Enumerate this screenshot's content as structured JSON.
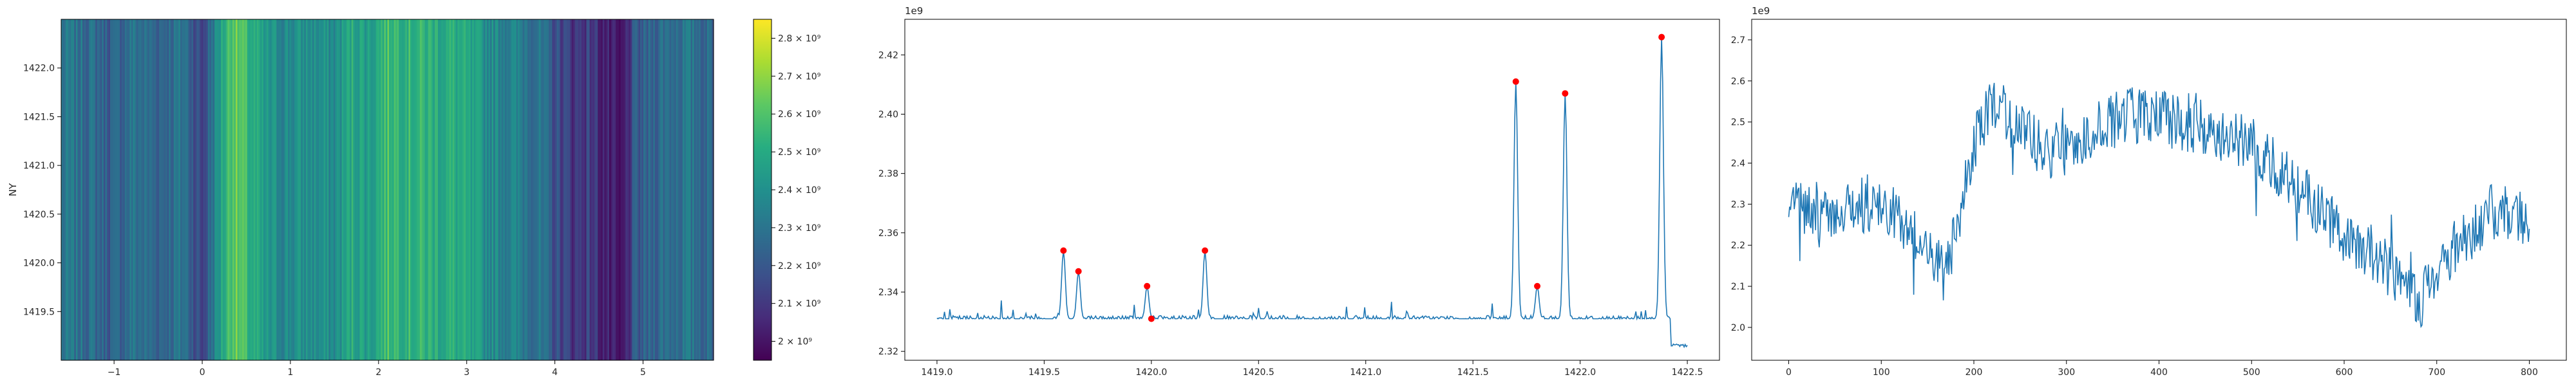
{
  "chart_data": [
    {
      "type": "heatmap",
      "ylabel": "NY",
      "xlim": [
        -1.6,
        5.8
      ],
      "ylim": [
        1419.0,
        1422.5
      ],
      "x_ticks": [
        "−1",
        "0",
        "1",
        "2",
        "3",
        "4",
        "5"
      ],
      "x_tick_values": [
        -1,
        0,
        1,
        2,
        3,
        4,
        5
      ],
      "y_ticks": [
        "1419.5",
        "1420.0",
        "1420.5",
        "1421.0",
        "1421.5",
        "1422.0"
      ],
      "y_tick_values": [
        1419.5,
        1420.0,
        1420.5,
        1421.0,
        1421.5,
        1422.0
      ],
      "colormap": "viridis",
      "colorbar": {
        "range": [
          1.95,
          2.85
        ],
        "scale_base": "×10⁹",
        "ticks": [
          "2 × 10⁹",
          "2.1 × 10⁹",
          "2.2 × 10⁹",
          "2.3 × 10⁹",
          "2.4 × 10⁹",
          "2.5 × 10⁹",
          "2.6 × 10⁹",
          "2.7 × 10⁹",
          "2.8 × 10⁹"
        ],
        "tick_values": [
          2.0,
          2.1,
          2.2,
          2.3,
          2.4,
          2.5,
          2.6,
          2.7,
          2.8
        ]
      },
      "column_value_profile": [
        [
          -1.6,
          2.3
        ],
        [
          -1.3,
          2.28
        ],
        [
          -1.0,
          2.22
        ],
        [
          -0.8,
          2.3
        ],
        [
          -0.5,
          2.25
        ],
        [
          -0.2,
          2.3
        ],
        [
          0.0,
          2.12
        ],
        [
          0.2,
          2.45
        ],
        [
          0.35,
          2.65
        ],
        [
          0.5,
          2.55
        ],
        [
          0.7,
          2.42
        ],
        [
          0.9,
          2.38
        ],
        [
          1.2,
          2.4
        ],
        [
          1.5,
          2.38
        ],
        [
          1.7,
          2.5
        ],
        [
          1.9,
          2.45
        ],
        [
          2.1,
          2.58
        ],
        [
          2.3,
          2.55
        ],
        [
          2.6,
          2.52
        ],
        [
          2.9,
          2.5
        ],
        [
          3.2,
          2.4
        ],
        [
          3.5,
          2.35
        ],
        [
          3.8,
          2.3
        ],
        [
          4.0,
          2.18
        ],
        [
          4.2,
          2.1
        ],
        [
          4.4,
          2.12
        ],
        [
          4.6,
          2.02
        ],
        [
          4.75,
          1.95
        ],
        [
          4.9,
          2.18
        ],
        [
          5.2,
          2.28
        ],
        [
          5.5,
          2.3
        ],
        [
          5.8,
          2.25
        ]
      ]
    },
    {
      "type": "line",
      "offset_text": "1e9",
      "xlim": [
        1418.85,
        1422.65
      ],
      "ylim": [
        2.317,
        2.432
      ],
      "x_ticks": [
        "1419.0",
        "1419.5",
        "1420.0",
        "1420.5",
        "1421.0",
        "1421.5",
        "1422.0",
        "1422.5"
      ],
      "x_tick_values": [
        1419.0,
        1419.5,
        1420.0,
        1420.5,
        1421.0,
        1421.5,
        1422.0,
        1422.5
      ],
      "y_ticks": [
        "2.32",
        "2.34",
        "2.36",
        "2.38",
        "2.40",
        "2.42"
      ],
      "y_tick_values": [
        2.32,
        2.34,
        2.36,
        2.38,
        2.4,
        2.42
      ],
      "line_color": "#1f77b4",
      "baseline": 2.331,
      "baseline_x_range": [
        1419.0,
        1422.5
      ],
      "spikes": [
        [
          1419.59,
          2.354
        ],
        [
          1419.66,
          2.347
        ],
        [
          1419.98,
          2.342
        ],
        [
          1420.25,
          2.354
        ],
        [
          1421.7,
          2.411
        ],
        [
          1421.8,
          2.342
        ],
        [
          1421.93,
          2.407
        ],
        [
          1422.38,
          2.426
        ]
      ],
      "markers": {
        "color": "#ff0000",
        "points": [
          [
            1419.59,
            2.354
          ],
          [
            1419.66,
            2.347
          ],
          [
            1419.98,
            2.342
          ],
          [
            1420.0,
            2.331
          ],
          [
            1420.25,
            2.354
          ],
          [
            1421.7,
            2.411
          ],
          [
            1421.8,
            2.342
          ],
          [
            1421.93,
            2.407
          ],
          [
            1422.38,
            2.426
          ]
        ]
      }
    },
    {
      "type": "line",
      "offset_text": "1e9",
      "xlim": [
        -40,
        840
      ],
      "ylim": [
        1.92,
        2.75
      ],
      "x_ticks": [
        "0",
        "100",
        "200",
        "300",
        "400",
        "500",
        "600",
        "700",
        "800"
      ],
      "x_tick_values": [
        0,
        100,
        200,
        300,
        400,
        500,
        600,
        700,
        800
      ],
      "y_ticks": [
        "2.0",
        "2.1",
        "2.2",
        "2.3",
        "2.4",
        "2.5",
        "2.6",
        "2.7"
      ],
      "y_tick_values": [
        2.0,
        2.1,
        2.2,
        2.3,
        2.4,
        2.5,
        2.6,
        2.7
      ],
      "line_color": "#1f77b4",
      "n_points": 801,
      "trend": [
        [
          0,
          2.3
        ],
        [
          40,
          2.28
        ],
        [
          90,
          2.3
        ],
        [
          130,
          2.25
        ],
        [
          150,
          2.18
        ],
        [
          170,
          2.12
        ],
        [
          200,
          2.45
        ],
        [
          220,
          2.55
        ],
        [
          250,
          2.48
        ],
        [
          280,
          2.42
        ],
        [
          310,
          2.45
        ],
        [
          340,
          2.5
        ],
        [
          380,
          2.52
        ],
        [
          420,
          2.5
        ],
        [
          460,
          2.48
        ],
        [
          500,
          2.45
        ],
        [
          530,
          2.38
        ],
        [
          560,
          2.32
        ],
        [
          600,
          2.22
        ],
        [
          630,
          2.18
        ],
        [
          660,
          2.12
        ],
        [
          680,
          2.05
        ],
        [
          700,
          2.15
        ],
        [
          730,
          2.22
        ],
        [
          760,
          2.28
        ],
        [
          800,
          2.27
        ]
      ]
    }
  ]
}
